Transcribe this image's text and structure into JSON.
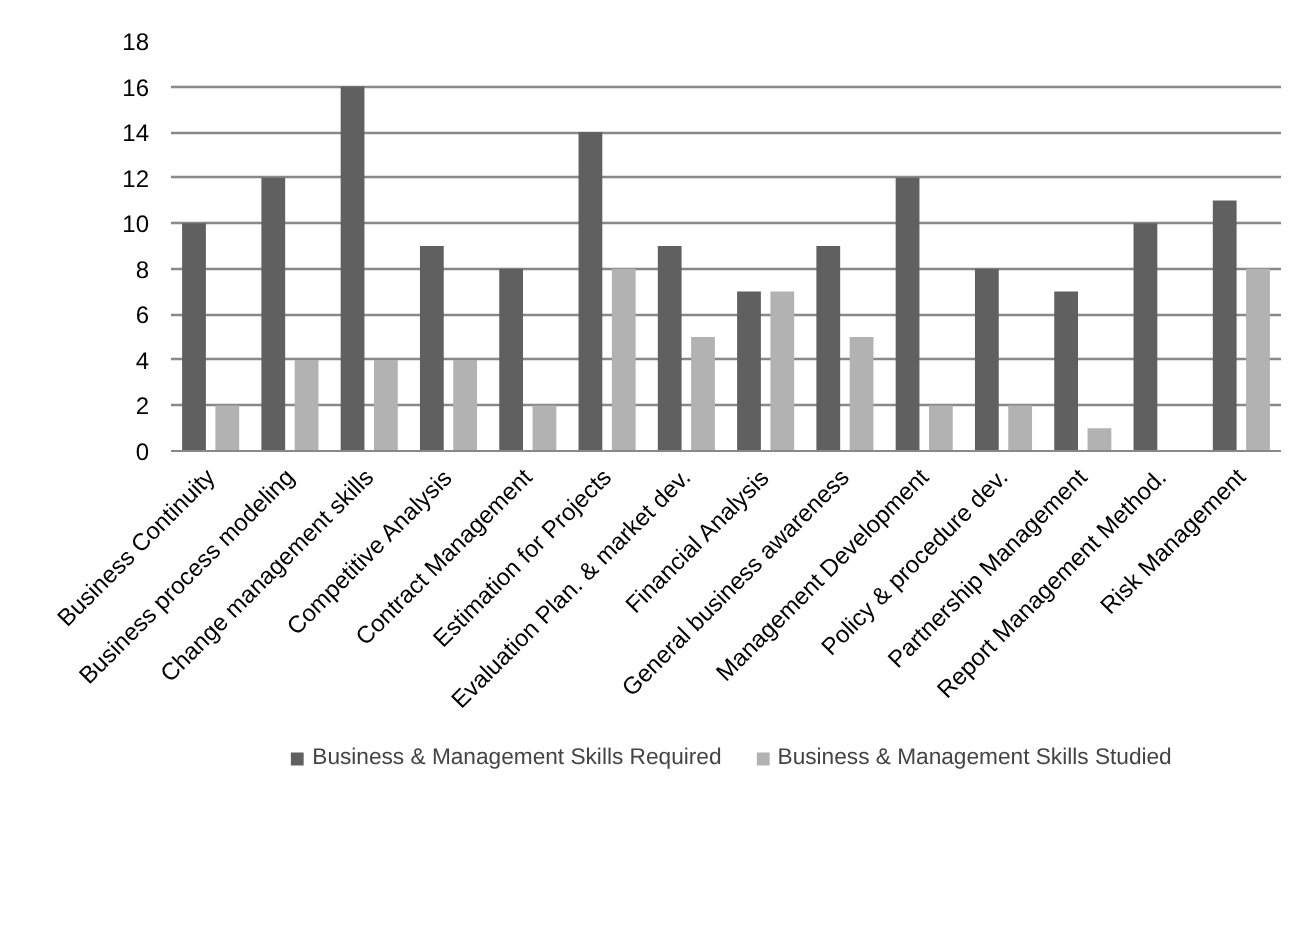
{
  "chart_data": {
    "type": "bar",
    "categories": [
      "Business Continuity",
      "Business process modeling",
      "Change management skills",
      "Competitive Analysis",
      "Contract Management",
      "Estimation for Projects",
      "Evaluation Plan. & market dev.",
      "Financial Analysis",
      "General business awareness",
      "Management Development",
      "Policy & procedure dev.",
      "Partnership Management",
      "Report Management Method.",
      "Risk Management"
    ],
    "series": [
      {
        "name": "Business & Management Skills Required",
        "color": "#606060",
        "values": [
          10,
          12,
          16,
          9,
          8,
          14,
          9,
          7,
          9,
          12,
          8,
          7,
          10,
          11
        ]
      },
      {
        "name": "Business & Management Skills Studied",
        "color": "#b2b2b2",
        "values": [
          2,
          4,
          4,
          4,
          2,
          8,
          5,
          7,
          5,
          2,
          2,
          1,
          0,
          8
        ]
      }
    ],
    "ylim": [
      0,
      18
    ],
    "yticks": [
      0,
      2,
      4,
      6,
      8,
      10,
      12,
      14,
      16,
      18
    ],
    "grid": "y",
    "legend": "bottom"
  }
}
